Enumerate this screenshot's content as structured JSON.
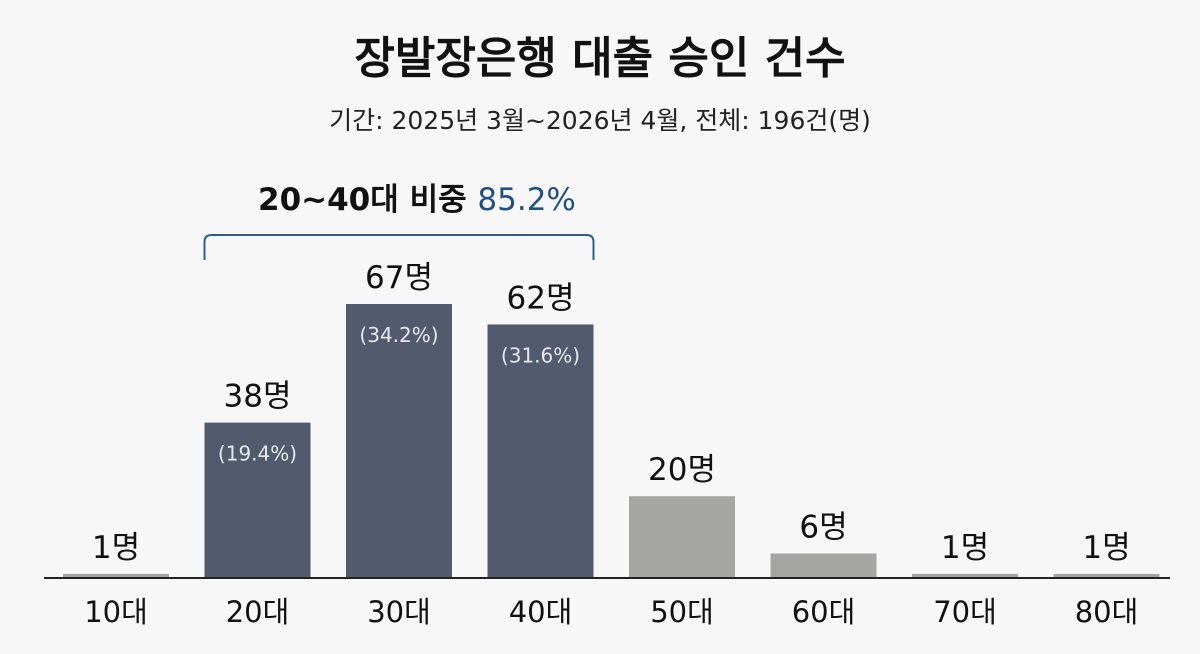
{
  "chart_data": {
    "type": "bar",
    "title": "장발장은행 대출 승인 건수",
    "subtitle": "기간: 2025년 3월~2026년 4월, 전체: 196건(명)",
    "categories": [
      "10대",
      "20대",
      "30대",
      "40대",
      "50대",
      "60대",
      "70대",
      "80대"
    ],
    "values": [
      1,
      38,
      67,
      62,
      20,
      6,
      1,
      1
    ],
    "value_labels": [
      "1명",
      "38명",
      "67명",
      "62명",
      "20명",
      "6명",
      "1명",
      "1명"
    ],
    "percent_labels": [
      "",
      "(19.4%)",
      "(34.2%)",
      "(31.6%)",
      "",
      "",
      "",
      ""
    ],
    "highlight": [
      false,
      true,
      true,
      true,
      false,
      false,
      false,
      false
    ],
    "ylim": [
      0,
      67
    ],
    "grid": false,
    "xlabel": "",
    "ylabel": "",
    "annotation": {
      "text": "20~40대 비중",
      "value": "85.2%",
      "range": [
        "20대",
        "40대"
      ]
    },
    "colors": {
      "highlight": "#525b6e",
      "normal": "#a5a6a4",
      "bracket": "#2e5c8e",
      "annotation_value": "#1f4f86"
    }
  }
}
